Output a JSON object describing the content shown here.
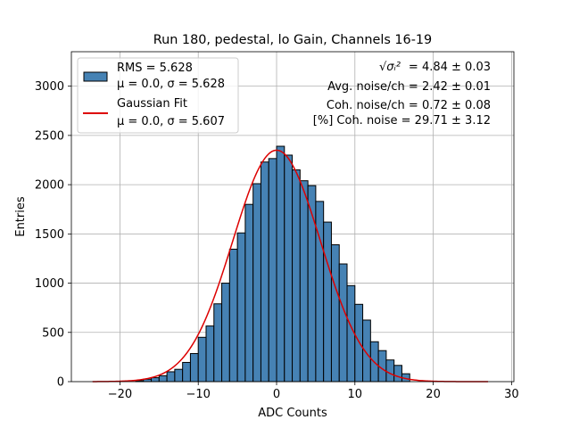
{
  "chart_data": {
    "type": "bar",
    "title": "Run 180, pedestal, lo Gain, Channels 16-19",
    "xlabel": "ADC Counts",
    "ylabel": "Entries",
    "xlim": [
      -26.2,
      30.3
    ],
    "ylim": [
      0,
      3350
    ],
    "grid": true,
    "xticks": [
      -20,
      -10,
      0,
      10,
      20,
      30
    ],
    "xtick_labels": [
      "−20",
      "−10",
      "0",
      "10",
      "20",
      "30"
    ],
    "yticks": [
      0,
      500,
      1000,
      1500,
      2000,
      2500,
      3000
    ],
    "ytick_labels": [
      "0",
      "500",
      "1000",
      "1500",
      "2000",
      "2500",
      "3000"
    ],
    "bin_edges": [
      -18,
      -17,
      -16,
      -15,
      -14,
      -13,
      -12,
      -11,
      -10,
      -9,
      -8,
      -7,
      -6,
      -5,
      -4,
      -3,
      -2,
      -1,
      0,
      1,
      2,
      3,
      4,
      5,
      6,
      7,
      8,
      9,
      10,
      11,
      12,
      13,
      14,
      15,
      16,
      17
    ],
    "counts": [
      10,
      25,
      40,
      60,
      100,
      125,
      195,
      285,
      450,
      565,
      790,
      1000,
      1345,
      1510,
      1800,
      2010,
      2230,
      2265,
      2390,
      2300,
      2150,
      2040,
      1990,
      1830,
      1620,
      1390,
      1195,
      975,
      785,
      625,
      405,
      315,
      220,
      165,
      80,
      40
    ],
    "series": [
      {
        "name": "hist",
        "label_lines": [
          "RMS = 5.628",
          "μ = 0.0, σ = 5.628"
        ],
        "color": "#4682b4",
        "edge": "#000000"
      },
      {
        "name": "fit",
        "label_lines": [
          "Gaussian Fit",
          "μ = 0.0, σ = 5.607"
        ],
        "color": "#dd0000",
        "mu": 0.0,
        "sigma": 5.607,
        "amplitude": 2350,
        "x_range": [
          -23.5,
          27
        ]
      }
    ],
    "legend_placement": "top-left",
    "annotations": {
      "sqrt_sigma": "√σᵢ²",
      "sqrt_value": " = 4.84 ± 0.03",
      "avg_noise": "Avg. noise/ch = 2.42 ± 0.01",
      "coh_noise": "Coh. noise/ch = 0.72 ± 0.08",
      "pct_coh": "[%] Coh. noise = 29.71 ± 3.12"
    }
  }
}
